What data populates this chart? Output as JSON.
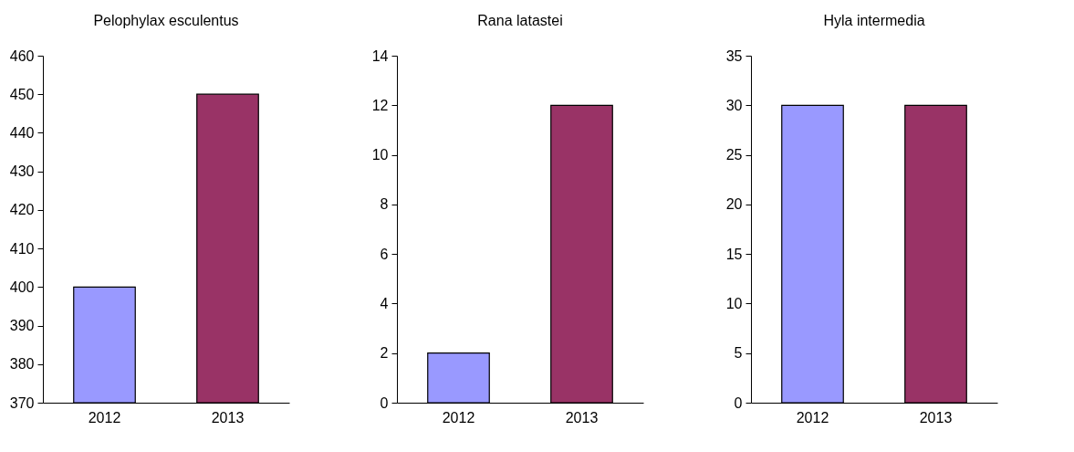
{
  "chart_data": [
    {
      "type": "bar",
      "title": "Pelophylax esculentus",
      "categories": [
        "2012",
        "2013"
      ],
      "values": [
        400,
        450
      ],
      "colors": [
        "#9999ff",
        "#993366"
      ],
      "ylim": [
        370,
        460
      ],
      "yticks": [
        370,
        380,
        390,
        400,
        410,
        420,
        430,
        440,
        450,
        460
      ],
      "grid": false,
      "legend": false
    },
    {
      "type": "bar",
      "title": "Rana latastei",
      "categories": [
        "2012",
        "2013"
      ],
      "values": [
        2,
        12
      ],
      "colors": [
        "#9999ff",
        "#993366"
      ],
      "ylim": [
        0,
        14
      ],
      "yticks": [
        0,
        2,
        4,
        6,
        8,
        10,
        12,
        14
      ],
      "grid": false,
      "legend": false
    },
    {
      "type": "bar",
      "title": "Hyla intermedia",
      "categories": [
        "2012",
        "2013"
      ],
      "values": [
        30,
        30
      ],
      "colors": [
        "#9999ff",
        "#993366"
      ],
      "ylim": [
        0,
        35
      ],
      "yticks": [
        0,
        5,
        10,
        15,
        20,
        25,
        30,
        35
      ],
      "grid": false,
      "legend": false
    }
  ]
}
